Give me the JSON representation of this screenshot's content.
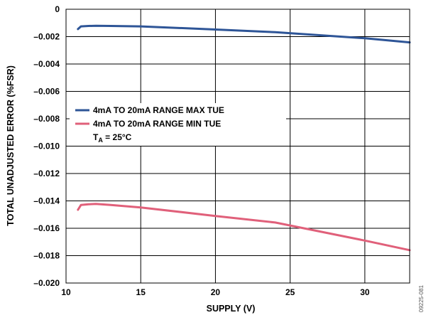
{
  "chart_data": {
    "type": "line",
    "xlabel": "SUPPLY (V)",
    "ylabel": "TOTAL UNADJUSTED ERROR (%FSR)",
    "xlim": [
      10,
      33
    ],
    "ylim": [
      -0.02,
      0
    ],
    "x_ticks": [
      10,
      15,
      20,
      25,
      30
    ],
    "x_tick_labels": [
      "10",
      "15",
      "20",
      "25",
      "30"
    ],
    "y_ticks": [
      0,
      -0.002,
      -0.004,
      -0.006,
      -0.008,
      -0.01,
      -0.012,
      -0.014,
      -0.016,
      -0.018,
      -0.02
    ],
    "y_tick_labels": [
      "0",
      "–0.002",
      "–0.004",
      "–0.006",
      "–0.008",
      "–0.010",
      "–0.012",
      "–0.014",
      "–0.016",
      "–0.018",
      "–0.020"
    ],
    "grid": true,
    "legend_position": "middle-left",
    "annotation": {
      "main": "T",
      "sub": "A",
      "rest": " = 25°C"
    },
    "figure_id": "09225-081",
    "series": [
      {
        "name": "4mA TO 20mA RANGE MAX TUE",
        "color": "#2e5597",
        "x": [
          10.8,
          11.0,
          11.5,
          12.0,
          13.0,
          15.0,
          20.0,
          24.0,
          30.0,
          33.0
        ],
        "y": [
          -0.00145,
          -0.00125,
          -0.00122,
          -0.00121,
          -0.00122,
          -0.00125,
          -0.00148,
          -0.00168,
          -0.00212,
          -0.00242
        ]
      },
      {
        "name": "4mA TO 20mA RANGE MIN TUE",
        "color": "#e0607a",
        "x": [
          10.8,
          11.0,
          11.5,
          12.0,
          13.0,
          15.0,
          20.0,
          24.0,
          30.0,
          33.0
        ],
        "y": [
          -0.01465,
          -0.0143,
          -0.01425,
          -0.01422,
          -0.0143,
          -0.01448,
          -0.0151,
          -0.01558,
          -0.0169,
          -0.0176
        ]
      }
    ]
  }
}
